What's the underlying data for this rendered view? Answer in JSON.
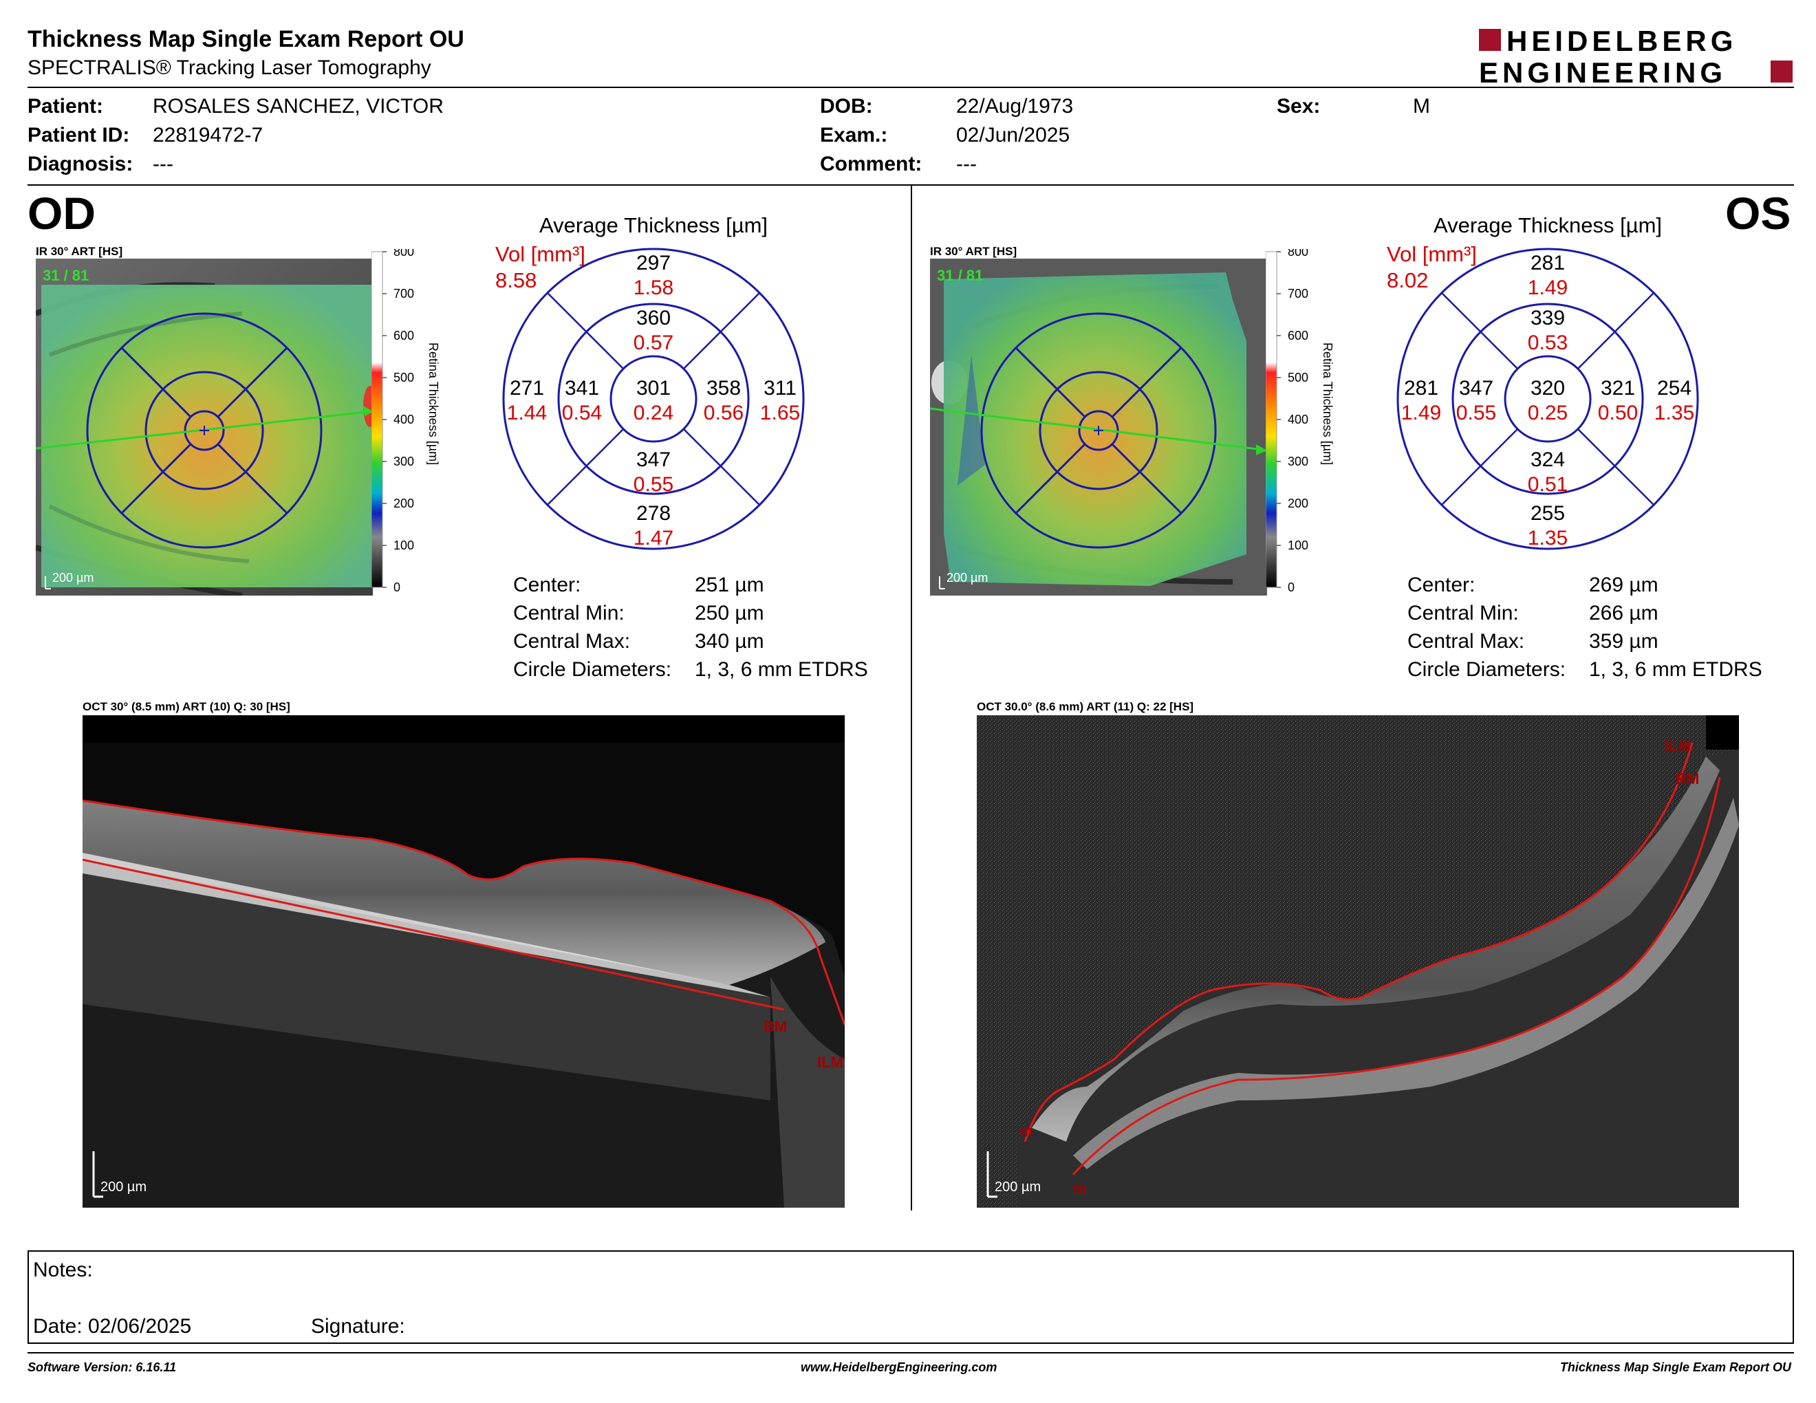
{
  "header": {
    "title": "Thickness Map Single Exam Report OU",
    "subtitle": "SPECTRALIS® Tracking Laser Tomography",
    "logo_line1": "HEIDELBERG",
    "logo_line2": "ENGINEERING",
    "logo_color": "#a0112a"
  },
  "patient": {
    "patient_label": "Patient:",
    "patient_value": "ROSALES SANCHEZ, VICTOR",
    "id_label": "Patient ID:",
    "id_value": "22819472-7",
    "diagnosis_label": "Diagnosis:",
    "diagnosis_value": "---",
    "dob_label": "DOB:",
    "dob_value": "22/Aug/1973",
    "exam_label": "Exam.:",
    "exam_value": "02/Jun/2025",
    "comment_label": "Comment:",
    "comment_value": "---",
    "sex_label": "Sex:",
    "sex_value": "M"
  },
  "od": {
    "eye_label": "OD",
    "ir_label": "IR 30° ART [HS]",
    "frames": "31 / 81",
    "scale_label": "200 µm",
    "colorbar_ticks": [
      "800",
      "700",
      "600",
      "500",
      "400",
      "300",
      "200",
      "100",
      "0"
    ],
    "colorbar_title": "Retina Thickness [µm]",
    "avg_title": "Average Thickness [µm]",
    "vol_label": "Vol [mm³]",
    "vol_value": "8.58",
    "sectors": {
      "outer_top": {
        "t": "297",
        "v": "1.58"
      },
      "inner_top": {
        "t": "360",
        "v": "0.57"
      },
      "center": {
        "t": "301",
        "v": "0.24"
      },
      "inner_left": {
        "t": "341",
        "v": "0.54"
      },
      "inner_right": {
        "t": "358",
        "v": "0.56"
      },
      "outer_left": {
        "t": "271",
        "v": "1.44"
      },
      "outer_right": {
        "t": "311",
        "v": "1.65"
      },
      "inner_bottom": {
        "t": "347",
        "v": "0.55"
      },
      "outer_bottom": {
        "t": "278",
        "v": "1.47"
      }
    },
    "stats": [
      {
        "label": "Center:",
        "value": "251 µm"
      },
      {
        "label": "Central Min:",
        "value": "250 µm"
      },
      {
        "label": "Central Max:",
        "value": "340 µm"
      },
      {
        "label": "Circle Diameters:",
        "value": "1, 3, 6 mm ETDRS"
      }
    ],
    "oct_label": "OCT 30° (8.5 mm) ART (10) Q: 30 [HS]",
    "oct_scale": "200 µm",
    "oct_bm": "BM",
    "oct_ilm": "ILM"
  },
  "os": {
    "eye_label": "OS",
    "ir_label": "IR 30° ART [HS]",
    "frames": "31 / 81",
    "scale_label": "200 µm",
    "colorbar_ticks": [
      "800",
      "700",
      "600",
      "500",
      "400",
      "300",
      "200",
      "100",
      "0"
    ],
    "colorbar_title": "Retina Thickness [µm]",
    "avg_title": "Average Thickness [µm]",
    "vol_label": "Vol [mm³]",
    "vol_value": "8.02",
    "sectors": {
      "outer_top": {
        "t": "281",
        "v": "1.49"
      },
      "inner_top": {
        "t": "339",
        "v": "0.53"
      },
      "center": {
        "t": "320",
        "v": "0.25"
      },
      "inner_left": {
        "t": "347",
        "v": "0.55"
      },
      "inner_right": {
        "t": "321",
        "v": "0.50"
      },
      "outer_left": {
        "t": "281",
        "v": "1.49"
      },
      "outer_right": {
        "t": "254",
        "v": "1.35"
      },
      "inner_bottom": {
        "t": "324",
        "v": "0.51"
      },
      "outer_bottom": {
        "t": "255",
        "v": "1.35"
      }
    },
    "stats": [
      {
        "label": "Center:",
        "value": "269 µm"
      },
      {
        "label": "Central Min:",
        "value": "266 µm"
      },
      {
        "label": "Central Max:",
        "value": "359 µm"
      },
      {
        "label": "Circle Diameters:",
        "value": "1, 3, 6 mm ETDRS"
      }
    ],
    "oct_label": "OCT 30.0° (8.6 mm) ART (11) Q: 22 [HS]",
    "oct_scale": "200 µm",
    "oct_ilm": "ILM",
    "oct_bm": "BM",
    "oct_m1": "m",
    "oct_m2": "m"
  },
  "notes": {
    "notes_label": "Notes:",
    "date_label": "Date: 02/06/2025",
    "signature_label": "Signature:"
  },
  "footer": {
    "software": "Software Version: 6.16.11",
    "website": "www.HeidelbergEngineering.com",
    "report": "Thickness Map Single Exam Report OU"
  }
}
